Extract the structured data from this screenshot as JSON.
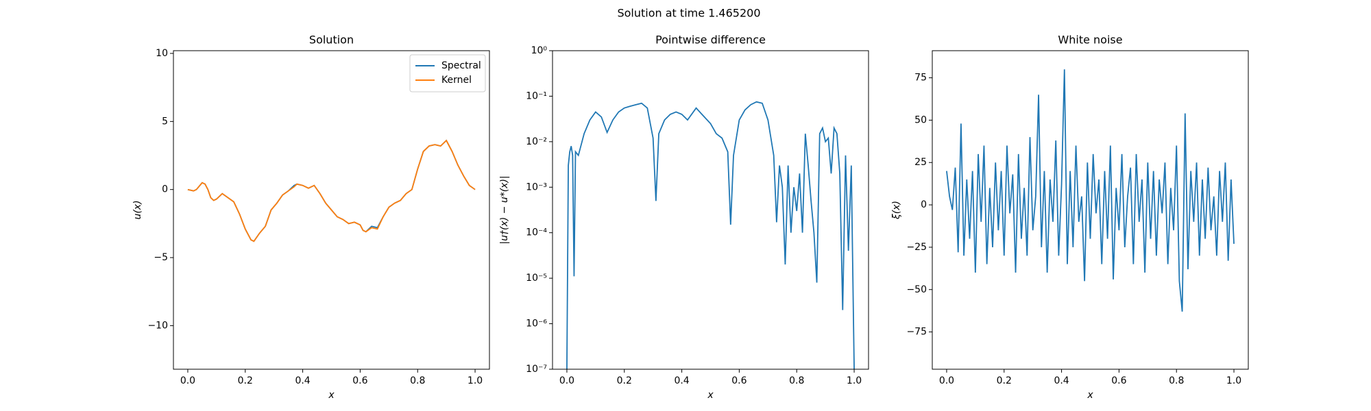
{
  "title": "Solution at time 1.465200",
  "chart_data": [
    {
      "type": "line",
      "title": "Solution",
      "xlabel": "x",
      "ylabel": "u(x)",
      "x": [
        0,
        0.02,
        0.03,
        0.05,
        0.06,
        0.07,
        0.08,
        0.09,
        0.1,
        0.12,
        0.14,
        0.16,
        0.18,
        0.2,
        0.22,
        0.23,
        0.25,
        0.27,
        0.29,
        0.31,
        0.33,
        0.35,
        0.37,
        0.38,
        0.4,
        0.42,
        0.44,
        0.46,
        0.48,
        0.5,
        0.52,
        0.54,
        0.56,
        0.58,
        0.6,
        0.61,
        0.62,
        0.64,
        0.66,
        0.68,
        0.7,
        0.72,
        0.74,
        0.76,
        0.78,
        0.8,
        0.82,
        0.84,
        0.86,
        0.88,
        0.9,
        0.92,
        0.94,
        0.96,
        0.98,
        1.0
      ],
      "series": [
        {
          "name": "Spectral",
          "color": "#1f77b4",
          "values": [
            0,
            -0.1,
            0,
            0.5,
            0.4,
            0,
            -0.6,
            -0.8,
            -0.7,
            -0.3,
            -0.6,
            -0.9,
            -1.8,
            -2.9,
            -3.7,
            -3.8,
            -3.2,
            -2.7,
            -1.5,
            -1.0,
            -0.4,
            -0.1,
            0.3,
            0.4,
            0.3,
            0.1,
            0.3,
            -0.3,
            -1.0,
            -1.5,
            -2.0,
            -2.2,
            -2.5,
            -2.4,
            -2.6,
            -3.0,
            -3.1,
            -2.7,
            -2.8,
            -2.0,
            -1.3,
            -1.0,
            -0.8,
            -0.3,
            0.0,
            1.5,
            2.8,
            3.2,
            3.3,
            3.2,
            3.6,
            2.8,
            1.8,
            1.0,
            0.3,
            0.0
          ]
        },
        {
          "name": "Kernel",
          "color": "#ff7f0e",
          "values": [
            0,
            -0.1,
            0,
            0.5,
            0.4,
            0,
            -0.6,
            -0.8,
            -0.7,
            -0.3,
            -0.6,
            -0.9,
            -1.8,
            -2.9,
            -3.7,
            -3.8,
            -3.2,
            -2.7,
            -1.5,
            -1.0,
            -0.4,
            -0.1,
            0.2,
            0.4,
            0.3,
            0.1,
            0.3,
            -0.3,
            -1.0,
            -1.5,
            -2.0,
            -2.2,
            -2.5,
            -2.4,
            -2.6,
            -3.0,
            -3.1,
            -2.8,
            -2.9,
            -2.0,
            -1.3,
            -1.0,
            -0.8,
            -0.3,
            0.0,
            1.5,
            2.8,
            3.2,
            3.3,
            3.2,
            3.6,
            2.8,
            1.8,
            1.0,
            0.3,
            0.0
          ]
        }
      ],
      "legend": "upper right",
      "xlim": [
        -0.05,
        1.05
      ],
      "ylim": [
        -13.2,
        10.2
      ],
      "xticks": [
        {
          "value": 0,
          "label": "0.0"
        },
        {
          "value": 0.2,
          "label": "0.2"
        },
        {
          "value": 0.4,
          "label": "0.4"
        },
        {
          "value": 0.6,
          "label": "0.6"
        },
        {
          "value": 0.8,
          "label": "0.8"
        },
        {
          "value": 1,
          "label": "1.0"
        }
      ],
      "yticks": [
        {
          "value": -10,
          "label": "−10"
        },
        {
          "value": -5,
          "label": "−5"
        },
        0,
        5,
        10
      ]
    },
    {
      "type": "line",
      "title": "Pointwise difference",
      "xlabel": "x",
      "ylabel": "|u†(x) − u*(x)|",
      "yscale": "log",
      "color": "#1f77b4",
      "x": [
        0,
        0.005,
        0.01,
        0.015,
        0.02,
        0.025,
        0.03,
        0.04,
        0.06,
        0.08,
        0.1,
        0.12,
        0.14,
        0.16,
        0.18,
        0.2,
        0.22,
        0.24,
        0.26,
        0.28,
        0.3,
        0.31,
        0.32,
        0.34,
        0.36,
        0.38,
        0.4,
        0.42,
        0.45,
        0.47,
        0.5,
        0.52,
        0.54,
        0.56,
        0.57,
        0.58,
        0.6,
        0.62,
        0.64,
        0.66,
        0.68,
        0.7,
        0.72,
        0.73,
        0.74,
        0.75,
        0.76,
        0.77,
        0.78,
        0.79,
        0.8,
        0.81,
        0.82,
        0.83,
        0.84,
        0.85,
        0.86,
        0.87,
        0.88,
        0.89,
        0.9,
        0.91,
        0.92,
        0.93,
        0.94,
        0.95,
        0.96,
        0.97,
        0.98,
        0.99,
        1.0
      ],
      "values": [
        1e-07,
        0.003,
        0.006,
        0.008,
        0.005,
        1.1e-05,
        0.006,
        0.005,
        0.015,
        0.03,
        0.045,
        0.035,
        0.016,
        0.03,
        0.045,
        0.055,
        0.06,
        0.065,
        0.07,
        0.055,
        0.012,
        0.0005,
        0.015,
        0.03,
        0.04,
        0.045,
        0.04,
        0.03,
        0.055,
        0.04,
        0.025,
        0.015,
        0.012,
        0.006,
        0.00015,
        0.005,
        0.03,
        0.05,
        0.065,
        0.075,
        0.07,
        0.03,
        0.005,
        0.00017,
        0.003,
        0.001,
        2e-05,
        0.003,
        0.0001,
        0.001,
        0.0003,
        0.002,
        0.0001,
        0.015,
        0.003,
        0.0005,
        0.0001,
        8e-06,
        0.015,
        0.02,
        0.01,
        0.012,
        0.002,
        0.02,
        0.015,
        0.002,
        2e-06,
        0.005,
        4e-05,
        0.003,
        1e-07
      ],
      "xlim": [
        -0.05,
        1.05
      ],
      "ylim": [
        1e-07,
        1
      ],
      "xticks": [
        {
          "value": 0,
          "label": "0.0"
        },
        {
          "value": 0.2,
          "label": "0.2"
        },
        {
          "value": 0.4,
          "label": "0.4"
        },
        {
          "value": 0.6,
          "label": "0.6"
        },
        {
          "value": 0.8,
          "label": "0.8"
        },
        {
          "value": 1,
          "label": "1.0"
        }
      ],
      "yticks": [
        {
          "value": 1e-07,
          "label": "10⁻⁷"
        },
        {
          "value": 1e-06,
          "label": "10⁻⁶"
        },
        {
          "value": 1e-05,
          "label": "10⁻⁵"
        },
        {
          "value": 0.0001,
          "label": "10⁻⁴"
        },
        {
          "value": 0.001,
          "label": "10⁻³"
        },
        {
          "value": 0.01,
          "label": "10⁻²"
        },
        {
          "value": 0.1,
          "label": "10⁻¹"
        },
        {
          "value": 1,
          "label": "10⁰"
        }
      ]
    },
    {
      "type": "line",
      "title": "White noise",
      "xlabel": "x",
      "ylabel": "ξ(x)",
      "color": "#1f77b4",
      "x": [
        0,
        0.01,
        0.02,
        0.03,
        0.04,
        0.05,
        0.06,
        0.07,
        0.08,
        0.09,
        0.1,
        0.11,
        0.12,
        0.13,
        0.14,
        0.15,
        0.16,
        0.17,
        0.18,
        0.19,
        0.2,
        0.21,
        0.22,
        0.23,
        0.24,
        0.25,
        0.26,
        0.27,
        0.28,
        0.29,
        0.3,
        0.31,
        0.32,
        0.33,
        0.34,
        0.35,
        0.36,
        0.37,
        0.38,
        0.39,
        0.4,
        0.41,
        0.42,
        0.43,
        0.44,
        0.45,
        0.46,
        0.47,
        0.48,
        0.49,
        0.5,
        0.51,
        0.52,
        0.53,
        0.54,
        0.55,
        0.56,
        0.57,
        0.58,
        0.59,
        0.6,
        0.61,
        0.62,
        0.63,
        0.64,
        0.65,
        0.66,
        0.67,
        0.68,
        0.69,
        0.7,
        0.71,
        0.72,
        0.73,
        0.74,
        0.75,
        0.76,
        0.77,
        0.78,
        0.79,
        0.8,
        0.81,
        0.82,
        0.83,
        0.84,
        0.85,
        0.86,
        0.87,
        0.88,
        0.89,
        0.9,
        0.91,
        0.92,
        0.93,
        0.94,
        0.95,
        0.96,
        0.97,
        0.98,
        0.99,
        1.0
      ],
      "values": [
        20,
        5,
        -3,
        22,
        -28,
        48,
        -30,
        15,
        -20,
        20,
        -40,
        30,
        -10,
        35,
        -35,
        10,
        -25,
        25,
        -15,
        20,
        -30,
        35,
        -5,
        18,
        -40,
        30,
        -20,
        10,
        -30,
        40,
        -15,
        5,
        65,
        -25,
        20,
        -40,
        15,
        -10,
        38,
        -30,
        12,
        80,
        -35,
        20,
        -25,
        35,
        -10,
        5,
        -45,
        25,
        -20,
        30,
        -5,
        15,
        -35,
        20,
        -20,
        35,
        -44,
        10,
        -15,
        30,
        -25,
        5,
        22,
        -35,
        30,
        -10,
        15,
        -40,
        25,
        -20,
        20,
        -30,
        15,
        -5,
        25,
        -35,
        10,
        -15,
        35,
        -45,
        -63,
        54,
        -38,
        20,
        -10,
        25,
        -30,
        15,
        -20,
        22,
        -15,
        5,
        -30,
        20,
        -10,
        25,
        -33,
        15,
        -23
      ],
      "xlim": [
        -0.05,
        1.05
      ],
      "ylim": [
        -97,
        91
      ],
      "xticks": [
        {
          "value": 0,
          "label": "0.0"
        },
        {
          "value": 0.2,
          "label": "0.2"
        },
        {
          "value": 0.4,
          "label": "0.4"
        },
        {
          "value": 0.6,
          "label": "0.6"
        },
        {
          "value": 0.8,
          "label": "0.8"
        },
        {
          "value": 1,
          "label": "1.0"
        }
      ],
      "yticks": [
        {
          "value": -75,
          "label": "−75"
        },
        {
          "value": -50,
          "label": "−50"
        },
        {
          "value": -25,
          "label": "−25"
        },
        0,
        25,
        50,
        75
      ]
    }
  ]
}
